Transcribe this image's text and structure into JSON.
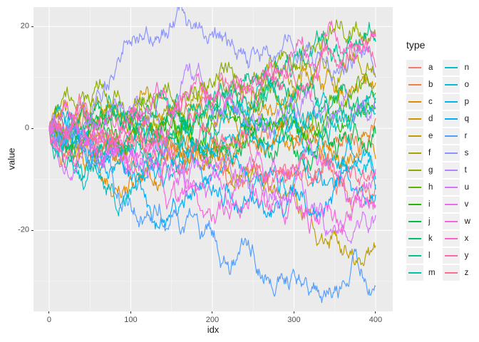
{
  "chart_data": {
    "type": "line",
    "title": "",
    "xlabel": "idx",
    "ylabel": "value",
    "legend_title": "type",
    "legend_position": "right",
    "x_ticks": [
      0,
      100,
      200,
      300,
      400
    ],
    "y_ticks": [
      -20,
      0,
      20
    ],
    "x_minor": [
      50,
      150,
      250,
      350
    ],
    "y_minor": [
      -30,
      -10,
      10
    ],
    "xlim": [
      -19.2,
      421
    ],
    "ylim": [
      -35.9,
      23.8
    ],
    "grid": true,
    "panel_bg": "#EBEBEB",
    "grid_major_color": "#FFFFFF",
    "grid_minor_color": "#FFFFFF",
    "key_x": [
      0,
      50,
      100,
      150,
      200,
      250,
      300,
      350,
      400
    ],
    "series": [
      {
        "name": "a",
        "color": "#F8766D",
        "keys": [
          0,
          -1,
          -3,
          -2,
          -5,
          -8,
          -9,
          -11,
          -11
        ]
      },
      {
        "name": "b",
        "color": "#EE8044",
        "keys": [
          0,
          -5,
          -7,
          -4,
          -6,
          -3,
          -4,
          -2,
          2
        ]
      },
      {
        "name": "c",
        "color": "#E18A00",
        "keys": [
          0,
          -7,
          -10,
          -6,
          -3,
          0,
          -2,
          -5,
          -6
        ]
      },
      {
        "name": "d",
        "color": "#D29300",
        "keys": [
          0,
          2,
          1,
          3,
          2,
          4,
          6,
          7,
          9
        ]
      },
      {
        "name": "e",
        "color": "#BE9C00",
        "keys": [
          0,
          -1,
          -2,
          -4,
          -6,
          -9,
          -11,
          -20,
          -23
        ]
      },
      {
        "name": "f",
        "color": "#A6A500",
        "keys": [
          0,
          3,
          2,
          4,
          6,
          7,
          8,
          9,
          10
        ]
      },
      {
        "name": "g",
        "color": "#8CAB00",
        "keys": [
          0,
          5,
          3,
          6,
          8,
          10,
          12,
          19,
          18
        ]
      },
      {
        "name": "h",
        "color": "#61B200",
        "keys": [
          0,
          -2,
          0,
          2,
          1,
          3,
          4,
          6,
          7
        ]
      },
      {
        "name": "i",
        "color": "#24B700",
        "keys": [
          0,
          1,
          -1,
          0,
          2,
          -1,
          1,
          3,
          4
        ]
      },
      {
        "name": "j",
        "color": "#00BB48",
        "keys": [
          0,
          -1,
          1,
          -2,
          -4,
          -2,
          -5,
          -3,
          -1
        ]
      },
      {
        "name": "k",
        "color": "#00BE70",
        "keys": [
          0,
          1,
          3,
          2,
          5,
          4,
          6,
          5,
          6
        ]
      },
      {
        "name": "l",
        "color": "#00C08F",
        "keys": [
          0,
          2,
          1,
          4,
          6,
          9,
          14,
          15,
          17
        ]
      },
      {
        "name": "m",
        "color": "#00C1AB",
        "keys": [
          0,
          -7,
          -4,
          -1,
          2,
          4,
          6,
          3,
          5
        ]
      },
      {
        "name": "n",
        "color": "#00BEC6",
        "keys": [
          0,
          -8,
          -13,
          -6,
          -2,
          1,
          3,
          1,
          3
        ]
      },
      {
        "name": "o",
        "color": "#00BBDA",
        "keys": [
          0,
          -2,
          -5,
          -9,
          -5,
          -1,
          2,
          -6,
          -10
        ]
      },
      {
        "name": "p",
        "color": "#00B4F0",
        "keys": [
          0,
          -5,
          -8,
          -6,
          -9,
          -12,
          -10,
          -11,
          -12
        ]
      },
      {
        "name": "q",
        "color": "#00ACFC",
        "keys": [
          0,
          -3,
          -9,
          -16,
          -12,
          -14,
          -13,
          -11,
          -13
        ]
      },
      {
        "name": "r",
        "color": "#529EFF",
        "keys": [
          0,
          -7,
          -15,
          -17,
          -20,
          -24,
          -28,
          -31,
          -31
        ]
      },
      {
        "name": "s",
        "color": "#8B93FF",
        "keys": [
          0,
          2,
          17,
          20,
          19,
          16,
          15,
          11,
          10
        ]
      },
      {
        "name": "t",
        "color": "#B385FF",
        "keys": [
          0,
          1,
          3,
          2,
          4,
          3,
          5,
          3,
          4
        ]
      },
      {
        "name": "u",
        "color": "#D575FE",
        "keys": [
          0,
          -2,
          -4,
          -6,
          -8,
          -10,
          -12,
          -19,
          -17
        ]
      },
      {
        "name": "v",
        "color": "#EA6CEE",
        "keys": [
          0,
          -3,
          -5,
          -7,
          -9,
          -7,
          -8,
          -9,
          -8
        ]
      },
      {
        "name": "w",
        "color": "#F962DD",
        "keys": [
          0,
          -4,
          -8,
          -12,
          -17,
          -12,
          -13,
          -16,
          -15
        ]
      },
      {
        "name": "x",
        "color": "#FC62C7",
        "keys": [
          0,
          -2,
          0,
          3,
          6,
          10,
          15,
          19,
          18
        ]
      },
      {
        "name": "y",
        "color": "#FF65AC",
        "keys": [
          0,
          2,
          4,
          2,
          5,
          8,
          10,
          13,
          12
        ]
      },
      {
        "name": "z",
        "color": "#FD6C90",
        "keys": [
          0,
          -1,
          -2,
          -4,
          -3,
          -6,
          -8,
          -9,
          -9
        ]
      }
    ]
  }
}
